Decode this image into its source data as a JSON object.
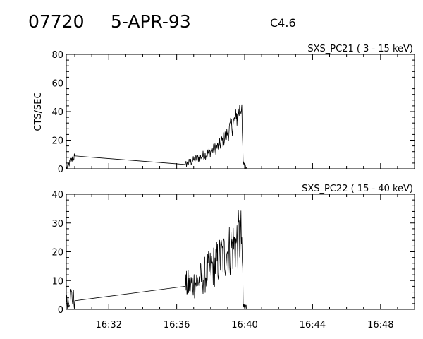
{
  "header": {
    "event_id": "07720",
    "date": "5-APR-93",
    "flare_class": "C4.6"
  },
  "chart_data": [
    {
      "type": "line",
      "title": "SXS_PC21  (  3 - 15 keV)",
      "ylabel": "CTS/SEC",
      "xlabel": "",
      "ylim": [
        0,
        80
      ],
      "yticks": [
        0,
        20,
        40,
        60,
        80
      ],
      "yticklabels": [
        "0",
        "20",
        "40",
        "60",
        "80"
      ],
      "xlim": [
        "16:29:30",
        "16:50:00"
      ],
      "xticks": [
        "16:32",
        "16:36",
        "16:40",
        "16:44",
        "16:48"
      ],
      "show_xticklabels": false,
      "grid": false,
      "series": [
        {
          "x": [
            "16:29:30",
            "16:29:45",
            "16:30:00",
            "16:36:30",
            "16:37:00",
            "16:37:30",
            "16:38:00",
            "16:38:30",
            "16:39:00",
            "16:39:30",
            "16:39:50",
            "16:39:55",
            "16:40:10"
          ],
          "y": [
            0,
            5,
            9,
            3,
            6,
            9,
            12,
            16,
            25,
            35,
            45,
            3,
            0
          ]
        }
      ]
    },
    {
      "type": "line",
      "title": "SXS_PC22  ( 15 - 40 keV)",
      "ylabel": "",
      "xlabel": "",
      "ylim": [
        0,
        40
      ],
      "yticks": [
        0,
        10,
        20,
        30,
        40
      ],
      "yticklabels": [
        "0",
        "10",
        "20",
        "30",
        "40"
      ],
      "xlim": [
        "16:29:30",
        "16:50:00"
      ],
      "xticks": [
        "16:32",
        "16:36",
        "16:40",
        "16:44",
        "16:48"
      ],
      "xticklabels": [
        "16:32",
        "16:36",
        "16:40",
        "16:44",
        "16:48"
      ],
      "show_xticklabels": true,
      "grid": false,
      "series": [
        {
          "x": [
            "16:29:30",
            "16:29:45",
            "16:30:00",
            "16:36:30",
            "16:37:00",
            "16:37:30",
            "16:38:00",
            "16:38:30",
            "16:39:00",
            "16:39:30",
            "16:39:50",
            "16:39:55",
            "16:40:10"
          ],
          "y": [
            2,
            5,
            3,
            8,
            9,
            11,
            14,
            17,
            20,
            23,
            25,
            1,
            0
          ]
        }
      ]
    }
  ]
}
